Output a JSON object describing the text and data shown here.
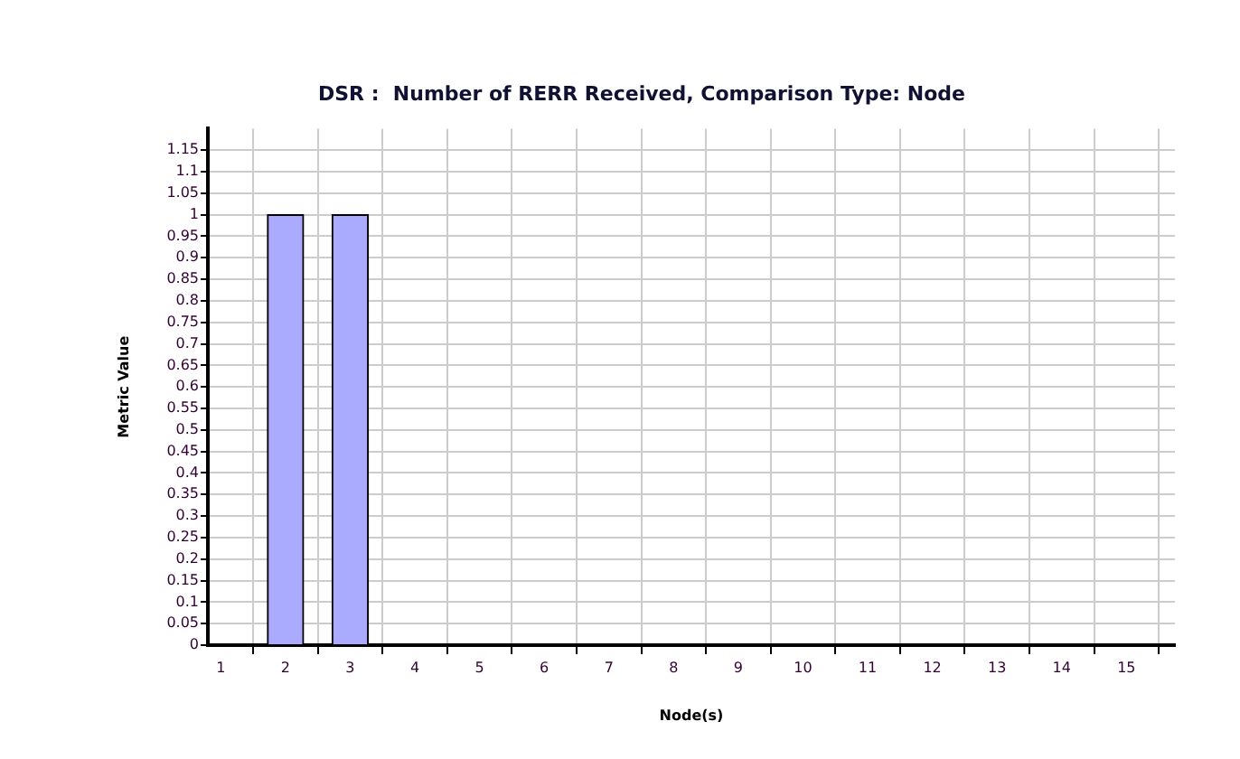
{
  "chart_data": {
    "type": "bar",
    "title": "DSR :  Number of RERR Received, Comparison Type: Node",
    "xlabel": "Node(s)",
    "ylabel": "Metric Value",
    "x": [
      1,
      2,
      3,
      4,
      5,
      6,
      7,
      8,
      9,
      10,
      11,
      12,
      13,
      14,
      15
    ],
    "values": [
      0,
      1,
      1,
      0,
      0,
      0,
      0,
      0,
      0,
      0,
      0,
      0,
      0,
      0,
      0
    ],
    "color": "#aaaaff",
    "xlim": [
      0.8,
      15.75
    ],
    "xticks": [
      1,
      2,
      3,
      4,
      5,
      6,
      7,
      8,
      9,
      10,
      11,
      12,
      13,
      14,
      15
    ],
    "ylim": [
      0,
      1.2
    ],
    "yticks": [
      0,
      0.05,
      0.1,
      0.15,
      0.2,
      0.25,
      0.3,
      0.35,
      0.4,
      0.45,
      0.5,
      0.55,
      0.6,
      0.65,
      0.7,
      0.75,
      0.8,
      0.85,
      0.9,
      0.95,
      1,
      1.05,
      1.1,
      1.15
    ],
    "grid": true,
    "legend": false
  }
}
